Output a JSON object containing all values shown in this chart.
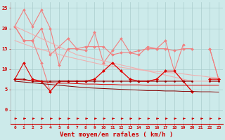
{
  "xlabel": "Vent moyen/en rafales ( km/h )",
  "x": [
    0,
    1,
    2,
    3,
    4,
    5,
    6,
    7,
    8,
    9,
    10,
    11,
    12,
    13,
    14,
    15,
    16,
    17,
    18,
    19,
    20,
    21,
    22,
    23
  ],
  "series": [
    {
      "name": "line1_pink_spiky",
      "y": [
        20.5,
        24.5,
        20.5,
        24.5,
        20.0,
        11.0,
        15.0,
        15.0,
        14.5,
        19.0,
        11.5,
        14.5,
        17.5,
        14.0,
        13.5,
        15.5,
        15.0,
        17.0,
        9.5,
        16.0,
        null,
        null,
        15.0,
        7.5
      ],
      "color": "#f08080",
      "lw": 0.8,
      "marker": "D",
      "ms": 2.0
    },
    {
      "name": "line2_pink_mid",
      "y": [
        20.5,
        17.0,
        17.0,
        20.0,
        13.5,
        15.5,
        17.5,
        15.0,
        15.5,
        15.5,
        15.5,
        13.5,
        14.0,
        14.0,
        14.5,
        15.0,
        15.0,
        15.0,
        14.5,
        15.0,
        15.0,
        null,
        15.0,
        7.5
      ],
      "color": "#f08080",
      "lw": 0.8,
      "marker": "D",
      "ms": 2.0
    },
    {
      "name": "line3_pink_lower",
      "y": [
        20.5,
        17.0,
        17.0,
        11.5,
        4.5,
        7.0,
        7.0,
        7.0,
        7.0,
        7.5,
        9.5,
        11.5,
        9.5,
        7.5,
        7.0,
        7.0,
        7.5,
        9.5,
        9.5,
        7.0,
        4.5,
        null,
        7.5,
        7.5
      ],
      "color": "#f08080",
      "lw": 0.8,
      "marker": "D",
      "ms": 2.0
    },
    {
      "name": "trend_pink1",
      "y": [
        20.5,
        19.5,
        18.5,
        17.5,
        16.5,
        15.5,
        14.5,
        13.5,
        13.0,
        12.5,
        12.0,
        11.5,
        11.0,
        10.5,
        10.0,
        9.5,
        9.0,
        8.5,
        8.0,
        7.5,
        7.0,
        7.0,
        7.0,
        7.0
      ],
      "color": "#f0b0b0",
      "lw": 0.8,
      "marker": null,
      "ms": 0
    },
    {
      "name": "trend_pink2",
      "y": [
        17.0,
        16.2,
        15.4,
        14.8,
        14.2,
        13.6,
        13.0,
        12.5,
        12.0,
        11.5,
        11.0,
        10.7,
        10.4,
        10.1,
        9.8,
        9.6,
        9.4,
        9.2,
        9.0,
        8.8,
        8.5,
        8.3,
        8.0,
        7.8
      ],
      "color": "#f0b0b0",
      "lw": 0.8,
      "marker": null,
      "ms": 0
    },
    {
      "name": "line_red_main",
      "y": [
        7.5,
        11.5,
        7.5,
        7.0,
        4.5,
        7.0,
        7.0,
        7.0,
        7.0,
        7.5,
        9.5,
        11.5,
        9.5,
        7.5,
        7.0,
        7.0,
        7.5,
        9.5,
        9.5,
        7.0,
        4.5,
        null,
        7.5,
        7.5
      ],
      "color": "#dd0000",
      "lw": 0.8,
      "marker": "D",
      "ms": 2.0
    },
    {
      "name": "line_red_flat",
      "y": [
        7.5,
        7.5,
        7.0,
        7.0,
        7.0,
        7.0,
        7.0,
        7.0,
        7.0,
        7.0,
        7.0,
        7.0,
        7.0,
        7.0,
        7.0,
        7.0,
        7.0,
        7.0,
        7.0,
        7.0,
        7.0,
        null,
        7.0,
        7.0
      ],
      "color": "#990000",
      "lw": 0.8,
      "marker": "D",
      "ms": 1.5
    },
    {
      "name": "trend_red1",
      "y": [
        7.5,
        7.3,
        7.1,
        6.9,
        6.7,
        6.5,
        6.5,
        6.4,
        6.3,
        6.3,
        6.2,
        6.2,
        6.1,
        6.1,
        6.1,
        6.0,
        6.0,
        6.0,
        6.0,
        6.0,
        6.0,
        6.0,
        6.0,
        6.0
      ],
      "color": "#dd0000",
      "lw": 0.7,
      "marker": null,
      "ms": 0
    },
    {
      "name": "trend_red2",
      "y": [
        7.0,
        6.8,
        6.6,
        6.4,
        6.2,
        6.0,
        5.8,
        5.6,
        5.4,
        5.3,
        5.2,
        5.1,
        5.0,
        4.9,
        4.8,
        4.7,
        4.7,
        4.6,
        4.6,
        4.5,
        4.5,
        4.4,
        4.4,
        4.3
      ],
      "color": "#880000",
      "lw": 0.7,
      "marker": null,
      "ms": 0
    }
  ],
  "ylim": [
    -3.5,
    26.5
  ],
  "yticks": [
    0,
    5,
    10,
    15,
    20,
    25
  ],
  "bg_color": "#cceaea",
  "grid_color": "#aacccc",
  "figsize": [
    3.2,
    2.0
  ],
  "dpi": 100
}
